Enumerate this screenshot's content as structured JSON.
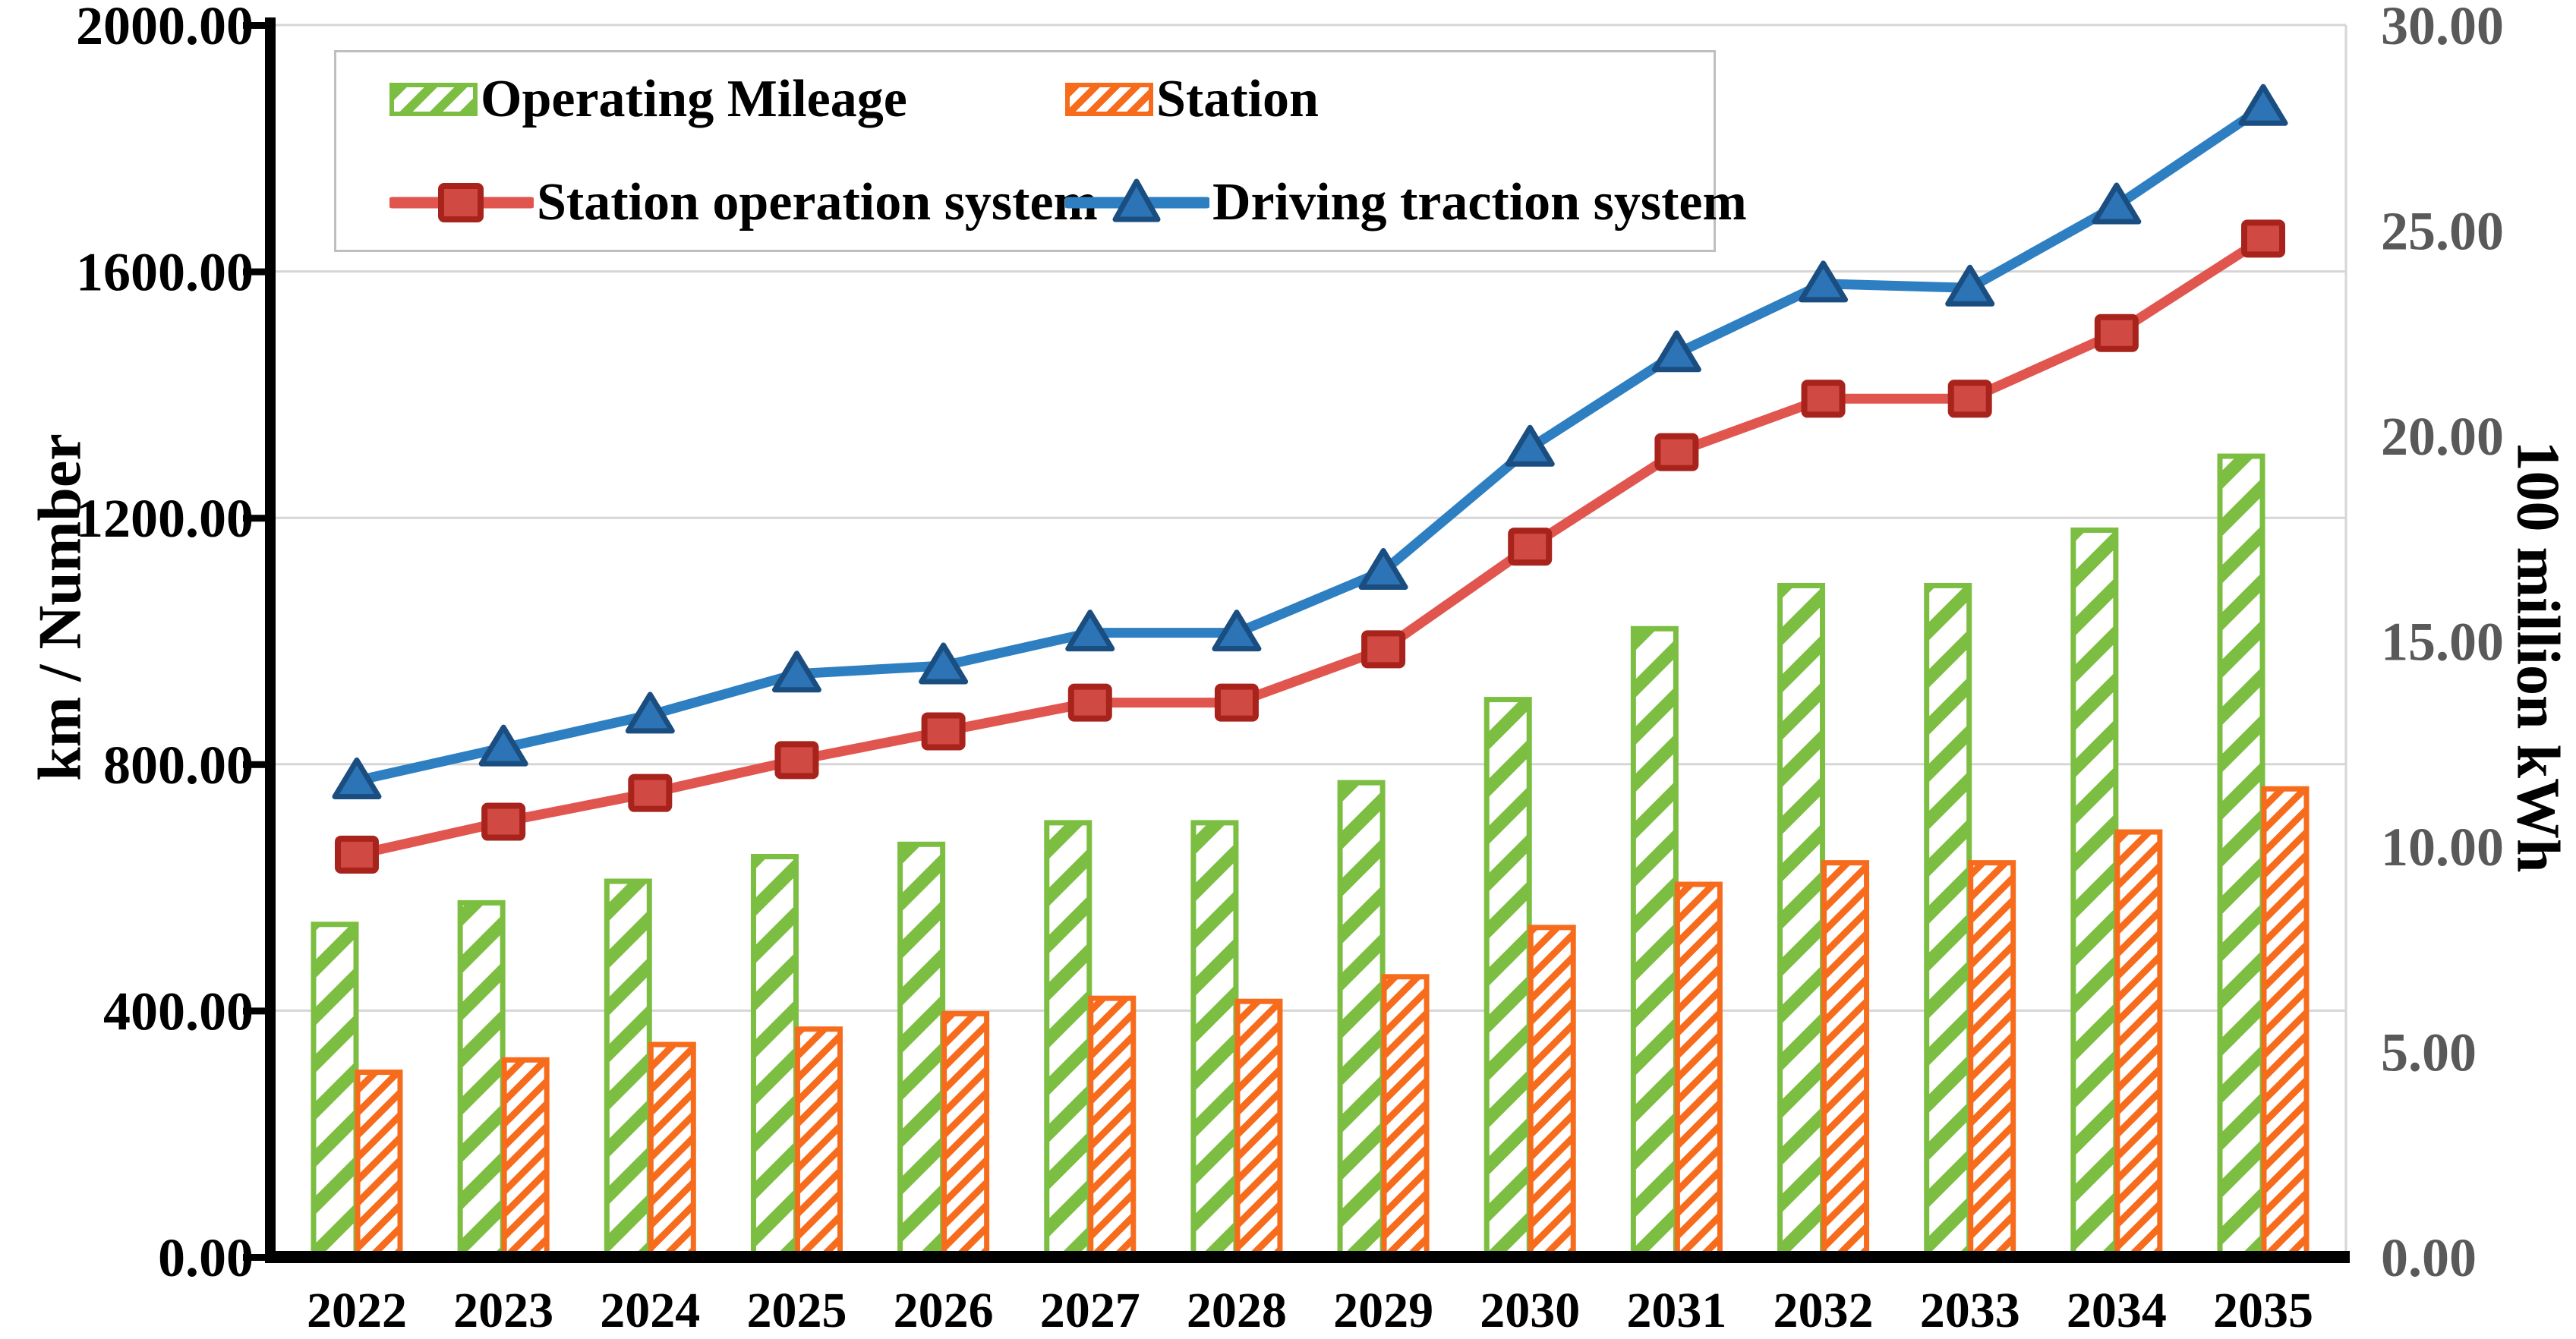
{
  "chart_data": {
    "type": "combo",
    "title": "",
    "categories": [
      "2022",
      "2023",
      "2024",
      "2025",
      "2026",
      "2027",
      "2028",
      "2029",
      "2030",
      "2031",
      "2032",
      "2033",
      "2034",
      "2035"
    ],
    "series": [
      {
        "name": "Operating Mileage",
        "type": "bar",
        "axis": "left",
        "color": "#7cbe41",
        "hatch": "wide-diagonal",
        "values": [
          540,
          575,
          610,
          650,
          670,
          705,
          705,
          770,
          905,
          1020,
          1090,
          1090,
          1180,
          1300
        ]
      },
      {
        "name": "Station",
        "type": "bar",
        "axis": "left",
        "color": "#f76c1c",
        "hatch": "dense-diagonal",
        "values": [
          300,
          320,
          345,
          370,
          395,
          420,
          415,
          455,
          535,
          605,
          640,
          640,
          690,
          760
        ]
      },
      {
        "name": "Station operation system",
        "type": "line",
        "axis": "right",
        "color": "#e0564f",
        "marker": "square",
        "marker_fill": "#d04a43",
        "marker_stroke": "#a8231b",
        "values": [
          9.8,
          10.6,
          11.3,
          12.1,
          12.8,
          13.5,
          13.5,
          14.8,
          17.3,
          19.6,
          20.9,
          20.9,
          22.5,
          24.8
        ]
      },
      {
        "name": "Driving traction system",
        "type": "line",
        "axis": "right",
        "color": "#2e7fc1",
        "marker": "triangle",
        "marker_fill": "#2c74b5",
        "marker_stroke": "#1b4e80",
        "values": [
          11.6,
          12.4,
          13.2,
          14.2,
          14.4,
          15.2,
          15.2,
          16.7,
          19.7,
          22.0,
          23.7,
          23.6,
          25.6,
          28.0
        ]
      }
    ],
    "left_axis": {
      "label": "km / Number",
      "min": 0,
      "max": 2000,
      "step": 400,
      "ticks": [
        "0.00",
        "400.00",
        "800.00",
        "1200.00",
        "1600.00",
        "2000.00"
      ]
    },
    "right_axis": {
      "label": "100 million kWh",
      "min": 0,
      "max": 30,
      "step": 5,
      "ticks": [
        "0.00",
        "5.00",
        "10.00",
        "15.00",
        "20.00",
        "25.00",
        "30.00"
      ]
    },
    "grid": true,
    "legend_position": "top-left"
  },
  "colors": {
    "background": "#ffffff",
    "gridline": "#d6d6d6",
    "axis_line": "#000000",
    "left_tick_text": "#000000",
    "right_tick_text": "#595959",
    "legend_border": "#bfbfbf"
  }
}
